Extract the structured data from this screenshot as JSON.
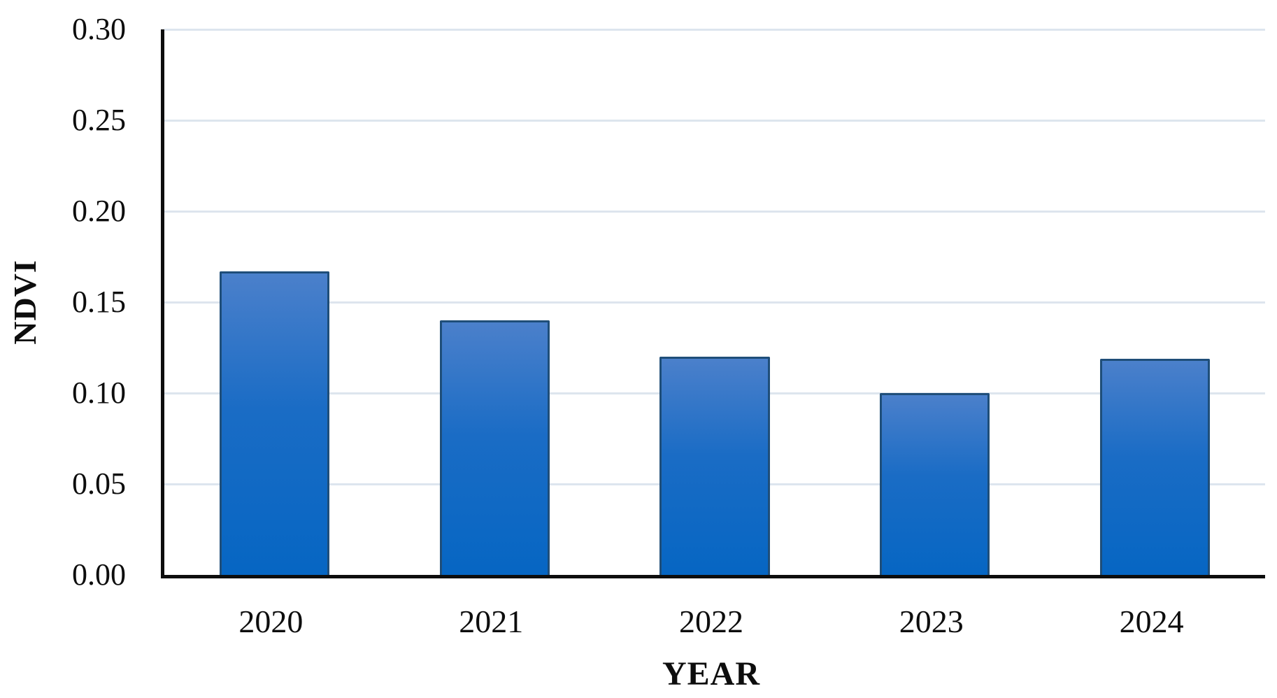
{
  "chart_data": {
    "type": "bar",
    "title": "",
    "categories": [
      "2020",
      "2021",
      "2022",
      "2023",
      "2024"
    ],
    "values": [
      0.167,
      0.14,
      0.12,
      0.1,
      0.119
    ],
    "xlabel": "YEAR",
    "ylabel": "NDVI",
    "ylim": [
      0,
      0.3
    ],
    "yticks": [
      0.0,
      0.05,
      0.1,
      0.15,
      0.2,
      0.25,
      0.3
    ],
    "ytick_labels": [
      "0.00",
      "0.05",
      "0.10",
      "0.15",
      "0.20",
      "0.25",
      "0.30"
    ],
    "grid": true,
    "legend": false,
    "bar_gap_ratio": 0.5
  },
  "colors": {
    "bar_gradient_top": "#4b80cb",
    "bar_gradient_mid": "#1a6cc5",
    "bar_gradient_bottom": "#0666c3",
    "bar_border": "#1f4e79",
    "gridline": "#dde5ee",
    "axis": "#0d0d0d",
    "text": "#0d0d0d",
    "background": "#ffffff"
  }
}
